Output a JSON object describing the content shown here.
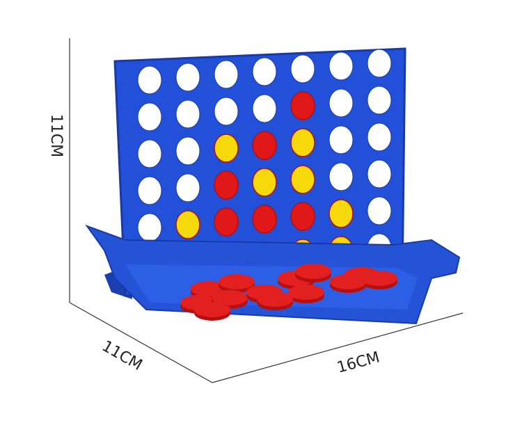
{
  "labels": {
    "height": "11CM",
    "depth": "11CM",
    "width": "16CM"
  }
}
